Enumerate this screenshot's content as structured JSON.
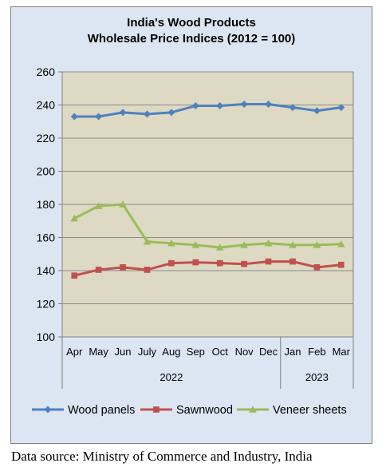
{
  "chart_data": {
    "type": "line",
    "title": "India's Wood Products",
    "subtitle": "Wholesale Price Indices (2012 = 100)",
    "categories": [
      "Apr",
      "May",
      "Jun",
      "July",
      "Aug",
      "Sep",
      "Oct",
      "Nov",
      "Dec",
      "Jan",
      "Feb",
      "Mar"
    ],
    "year_groups": [
      {
        "label": "2022",
        "start": 0,
        "end": 8
      },
      {
        "label": "2023",
        "start": 9,
        "end": 11
      }
    ],
    "ylim": [
      100,
      260
    ],
    "yticks": [
      100,
      120,
      140,
      160,
      180,
      200,
      220,
      240,
      260
    ],
    "grid": true,
    "legend_position": "bottom",
    "plot_background": "#ddd9c3",
    "series": [
      {
        "name": "Wood panels",
        "color": "#4f81bd",
        "marker": "diamond",
        "values": [
          233,
          233,
          235.5,
          234.5,
          235.5,
          239.5,
          239.5,
          240.5,
          240.5,
          238.5,
          236.5,
          238.5
        ]
      },
      {
        "name": "Sawnwood",
        "color": "#c0504d",
        "marker": "square",
        "values": [
          137,
          140.5,
          142,
          140.5,
          144.5,
          145,
          144.5,
          144,
          145.5,
          145.5,
          142,
          143.5
        ]
      },
      {
        "name": "Veneer sheets",
        "color": "#9bbb59",
        "marker": "triangle",
        "values": [
          171.5,
          179,
          180,
          157.5,
          156.5,
          155.5,
          154,
          155.5,
          156.5,
          155.5,
          155.5,
          156
        ]
      }
    ]
  },
  "source_text": "Data source: Ministry of Commerce and Industry, India"
}
